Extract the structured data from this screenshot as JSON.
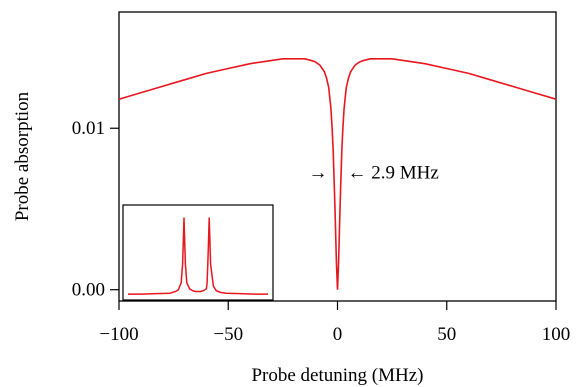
{
  "chart_data": [
    {
      "type": "line",
      "title": "",
      "xlabel": "Probe detuning (MHz)",
      "ylabel": "Probe absorption",
      "xlim": [
        -100,
        100
      ],
      "ylim": [
        -0.0007,
        0.0172
      ],
      "x_ticks": [
        -100,
        -50,
        0,
        50,
        100
      ],
      "x_tick_labels": [
        "−100",
        "−50",
        "0",
        "50",
        "100"
      ],
      "y_ticks": [
        0.0,
        0.01
      ],
      "y_tick_labels": [
        "0.00",
        "0.01"
      ],
      "grid": false,
      "series": [
        {
          "color": "#e8161e",
          "x": [
            -100,
            -90,
            -80,
            -70,
            -60,
            -50,
            -40,
            -30,
            -25,
            -20,
            -17,
            -15,
            -12,
            -10,
            -8,
            -6,
            -5,
            -4,
            -3,
            -2.5,
            -2,
            -1.5,
            -1,
            -0.5,
            0,
            0.5,
            1,
            1.5,
            2,
            2.5,
            3,
            4,
            5,
            6,
            8,
            10,
            12,
            15,
            17,
            20,
            25,
            30,
            40,
            50,
            60,
            70,
            80,
            90,
            100
          ],
          "y": [
            0.0118,
            0.0122,
            0.0126,
            0.013,
            0.0134,
            0.0137,
            0.014,
            0.0142,
            0.0143,
            0.0143,
            0.0143,
            0.0143,
            0.0142,
            0.0141,
            0.0139,
            0.0135,
            0.0131,
            0.0125,
            0.0112,
            0.0101,
            0.0087,
            0.0066,
            0.0043,
            0.0017,
            0.0,
            0.0017,
            0.0043,
            0.0066,
            0.0087,
            0.0101,
            0.0112,
            0.0125,
            0.0131,
            0.0135,
            0.0139,
            0.0141,
            0.0142,
            0.0143,
            0.0143,
            0.0143,
            0.0143,
            0.0142,
            0.014,
            0.0137,
            0.0134,
            0.013,
            0.0126,
            0.0122,
            0.0118
          ]
        }
      ],
      "annotations": {
        "left_arrow": "→",
        "right_text": "← 2.9 MHz",
        "annotation_x": 0,
        "annotation_y": 0.0069
      }
    },
    {
      "type": "line",
      "title": "",
      "xlabel": "",
      "ylabel": "",
      "xlim": [
        0,
        1
      ],
      "ylim": [
        0,
        1
      ],
      "grid": false,
      "axes_visible": false,
      "series": [
        {
          "color": "#e8161e",
          "x": [
            0.0,
            0.1,
            0.2,
            0.3,
            0.34,
            0.36,
            0.38,
            0.39,
            0.395,
            0.4,
            0.405,
            0.41,
            0.42,
            0.44,
            0.46,
            0.48,
            0.5,
            0.52,
            0.54,
            0.56,
            0.565,
            0.57,
            0.575,
            0.58,
            0.59,
            0.61,
            0.63,
            0.66,
            0.7,
            0.8,
            0.9,
            1.0
          ],
          "y": [
            0.01,
            0.01,
            0.015,
            0.02,
            0.04,
            0.06,
            0.14,
            0.35,
            0.6,
            0.88,
            0.6,
            0.35,
            0.14,
            0.07,
            0.05,
            0.04,
            0.04,
            0.04,
            0.05,
            0.07,
            0.14,
            0.35,
            0.6,
            0.88,
            0.35,
            0.1,
            0.05,
            0.03,
            0.02,
            0.015,
            0.01,
            0.01
          ]
        }
      ]
    }
  ]
}
